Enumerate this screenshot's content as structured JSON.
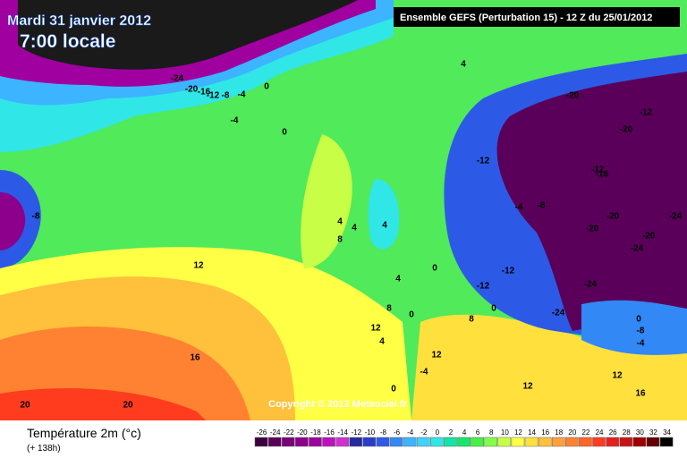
{
  "header": {
    "date": "Mardi 31 janvier 2012",
    "time": "7:00 locale",
    "model": "Ensemble GEFS (Perturbation 15)  -  12 Z du 25/01/2012"
  },
  "copyright": "Copyright © 2012 Meteociel.fr",
  "legend": {
    "title": "Température 2m (°c)",
    "subtitle": "(+ 138h)",
    "items": [
      {
        "value": -26,
        "color": "#3c003c"
      },
      {
        "value": -24,
        "color": "#5a005a"
      },
      {
        "value": -22,
        "color": "#780078"
      },
      {
        "value": -20,
        "color": "#8c008c"
      },
      {
        "value": -18,
        "color": "#a000a0"
      },
      {
        "value": -16,
        "color": "#be10be"
      },
      {
        "value": -14,
        "color": "#d030d0"
      },
      {
        "value": -12,
        "color": "#2828a0"
      },
      {
        "value": -10,
        "color": "#2a3cc8"
      },
      {
        "value": -8,
        "color": "#2c5ae6"
      },
      {
        "value": -6,
        "color": "#3288f5"
      },
      {
        "value": -4,
        "color": "#3cb4ff"
      },
      {
        "value": -2,
        "color": "#40d2ff"
      },
      {
        "value": 0,
        "color": "#30e6e6"
      },
      {
        "value": 2,
        "color": "#10e6a6"
      },
      {
        "value": 4,
        "color": "#18e66a"
      },
      {
        "value": 6,
        "color": "#46f046"
      },
      {
        "value": 8,
        "color": "#82ff46"
      },
      {
        "value": 10,
        "color": "#c8ff46"
      },
      {
        "value": 12,
        "color": "#ffff46"
      },
      {
        "value": 14,
        "color": "#ffe03c"
      },
      {
        "value": 16,
        "color": "#ffc03c"
      },
      {
        "value": 18,
        "color": "#ffa03c"
      },
      {
        "value": 20,
        "color": "#ff8232"
      },
      {
        "value": 22,
        "color": "#ff6428"
      },
      {
        "value": 24,
        "color": "#ff3c1e"
      },
      {
        "value": 26,
        "color": "#e61e1e"
      },
      {
        "value": 28,
        "color": "#c81414"
      },
      {
        "value": 30,
        "color": "#a00000"
      },
      {
        "value": 32,
        "color": "#640000"
      },
      {
        "value": 34,
        "color": "#000000"
      }
    ]
  },
  "contour_labels": [
    "-24",
    "-20",
    "-16",
    "-12",
    "-8",
    "-4",
    "0",
    "-4",
    "0",
    "4",
    "4",
    "-8",
    "-20",
    "-12",
    "-20",
    "-12",
    "-16",
    "-12",
    "-4",
    "-8",
    "-20",
    "-24",
    "-20",
    "-24",
    "-20",
    "-12",
    "-12",
    "-24",
    "-24",
    "0",
    "-8",
    "-4",
    "0",
    "8",
    "4",
    "0",
    "-4",
    "0",
    "4",
    "8",
    "12",
    "16",
    "20",
    "20",
    "12",
    "4",
    "12",
    "8",
    "12",
    "12",
    "16",
    "0",
    "4"
  ]
}
